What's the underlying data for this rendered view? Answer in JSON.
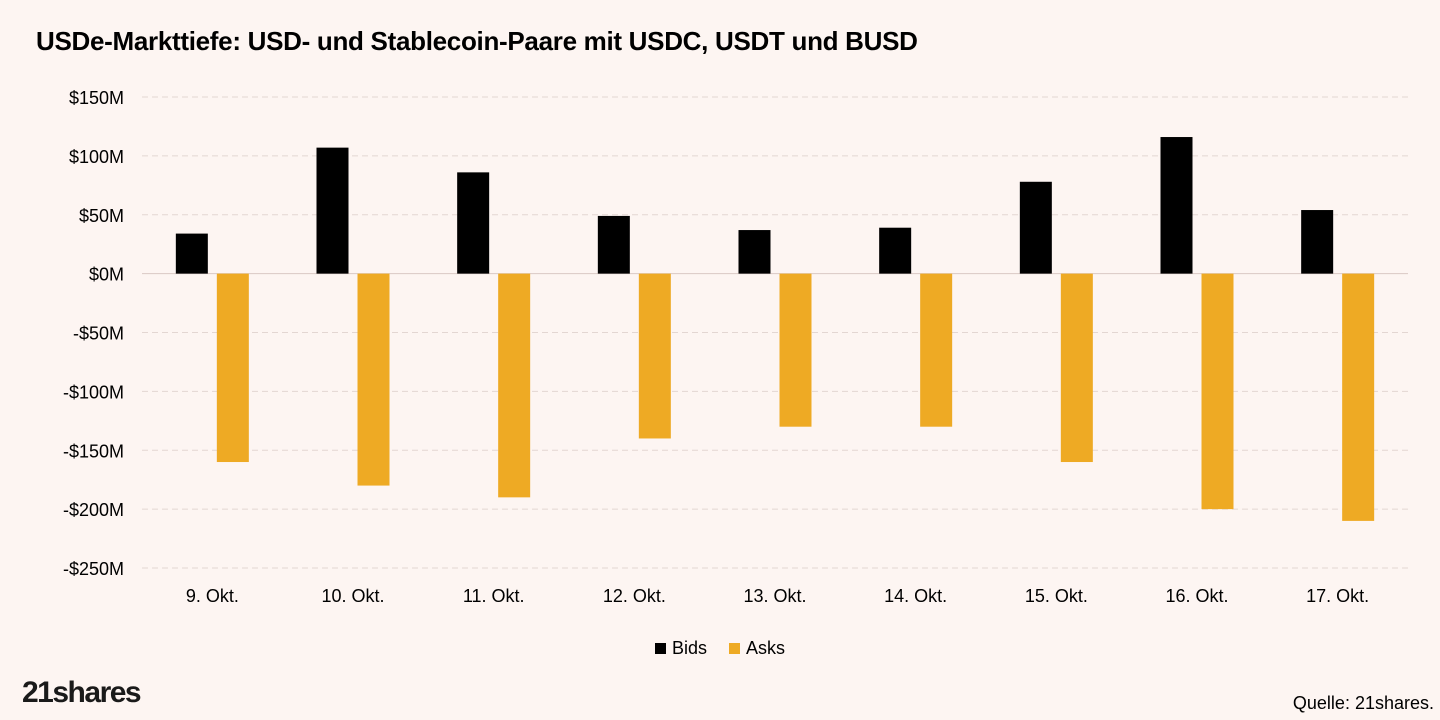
{
  "title": "USDe-Markttiefe: USD- und Stablecoin-Paare mit USDC, USDT und BUSD",
  "logo": "21shares",
  "source": "Quelle: 21shares.",
  "colors": {
    "bids": "#000000",
    "asks": "#eeaa24",
    "grid": "#e3d6d2",
    "background": "#fdf5f2"
  },
  "chart_data": {
    "type": "bar",
    "title": "USDe-Markttiefe: USD- und Stablecoin-Paare mit USDC, USDT und BUSD",
    "xlabel": "",
    "ylabel": "",
    "categories": [
      "9. Okt.",
      "10. Okt.",
      "11. Okt.",
      "12. Okt.",
      "13. Okt.",
      "14. Okt.",
      "15. Okt.",
      "16. Okt.",
      "17. Okt."
    ],
    "series": [
      {
        "name": "Bids",
        "values": [
          34,
          107,
          86,
          49,
          37,
          39,
          78,
          116,
          54
        ]
      },
      {
        "name": "Asks",
        "values": [
          -160,
          -180,
          -190,
          -140,
          -130,
          -130,
          -160,
          -200,
          -210
        ]
      }
    ],
    "ylim": [
      -250,
      150
    ],
    "yticks": [
      150,
      100,
      50,
      0,
      -50,
      -100,
      -150,
      -200,
      -250
    ],
    "ytick_labels": [
      "$150M",
      "$100M",
      "$50M",
      "$0M",
      "-$50M",
      "-$100M",
      "-$150M",
      "-$200M",
      "-$250M"
    ],
    "grid": true,
    "legend": "bottom-center"
  }
}
